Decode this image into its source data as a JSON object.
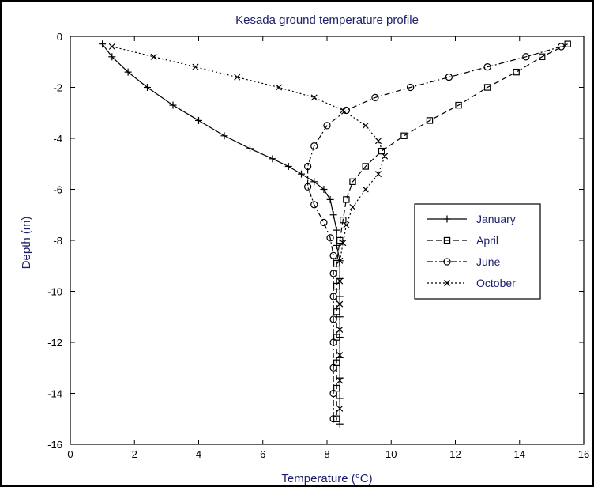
{
  "chart_data": {
    "type": "line",
    "title": "Kesada ground temperature profile",
    "xlabel": "Temperature (°C)",
    "ylabel": "Depth (m)",
    "xlim": [
      0,
      16
    ],
    "ylim": [
      16,
      0
    ],
    "y_axis_inverted": true,
    "xticks": [
      0,
      2,
      4,
      6,
      8,
      10,
      12,
      14,
      16
    ],
    "yticks": [
      0,
      2,
      4,
      6,
      8,
      10,
      12,
      14,
      16
    ],
    "grid": false,
    "legend_position": "right",
    "series": [
      {
        "name": "January",
        "marker": "+",
        "line_style": "solid",
        "color": "#000000",
        "x": [
          1.0,
          1.3,
          1.8,
          2.4,
          3.2,
          4.0,
          4.8,
          5.6,
          6.3,
          6.8,
          7.2,
          7.6,
          7.9,
          8.1,
          8.2,
          8.3,
          8.3,
          8.4,
          8.4,
          8.4,
          8.4,
          8.4,
          8.4,
          8.4,
          8.4,
          8.4
        ],
        "y": [
          0.3,
          0.8,
          1.4,
          2.0,
          2.7,
          3.3,
          3.9,
          4.4,
          4.8,
          5.1,
          5.4,
          5.7,
          6.0,
          6.4,
          7.0,
          7.6,
          8.2,
          8.8,
          9.5,
          10.2,
          11.0,
          11.8,
          12.6,
          13.4,
          14.2,
          15.2
        ]
      },
      {
        "name": "April",
        "marker": "square",
        "line_style": "dashed",
        "color": "#000000",
        "x": [
          15.5,
          14.7,
          13.9,
          13.0,
          12.1,
          11.2,
          10.4,
          9.7,
          9.2,
          8.8,
          8.6,
          8.5,
          8.4,
          8.3,
          8.3,
          8.3,
          8.3,
          8.3,
          8.3,
          8.3
        ],
        "y": [
          0.3,
          0.8,
          1.4,
          2.0,
          2.7,
          3.3,
          3.9,
          4.5,
          5.1,
          5.7,
          6.4,
          7.2,
          8.0,
          8.9,
          9.8,
          10.8,
          11.8,
          12.8,
          13.8,
          15.0
        ]
      },
      {
        "name": "June",
        "marker": "circle",
        "line_style": "dashdot",
        "color": "#000000",
        "x": [
          15.3,
          14.2,
          13.0,
          11.8,
          10.6,
          9.5,
          8.6,
          8.0,
          7.6,
          7.4,
          7.4,
          7.6,
          7.9,
          8.1,
          8.2,
          8.2,
          8.2,
          8.2,
          8.2,
          8.2,
          8.2,
          8.2
        ],
        "y": [
          0.4,
          0.8,
          1.2,
          1.6,
          2.0,
          2.4,
          2.9,
          3.5,
          4.3,
          5.1,
          5.9,
          6.6,
          7.3,
          7.9,
          8.6,
          9.3,
          10.2,
          11.1,
          12.0,
          13.0,
          14.0,
          15.0
        ]
      },
      {
        "name": "October",
        "marker": "x",
        "line_style": "dotted",
        "color": "#000000",
        "x": [
          1.3,
          2.6,
          3.9,
          5.2,
          6.5,
          7.6,
          8.5,
          9.2,
          9.6,
          9.8,
          9.6,
          9.2,
          8.8,
          8.6,
          8.5,
          8.4,
          8.4,
          8.4,
          8.4,
          8.4,
          8.4,
          8.4
        ],
        "y": [
          0.4,
          0.8,
          1.2,
          1.6,
          2.0,
          2.4,
          2.9,
          3.5,
          4.1,
          4.7,
          5.4,
          6.0,
          6.7,
          7.4,
          8.1,
          8.8,
          9.6,
          10.5,
          11.5,
          12.5,
          13.5,
          14.6
        ]
      }
    ]
  }
}
